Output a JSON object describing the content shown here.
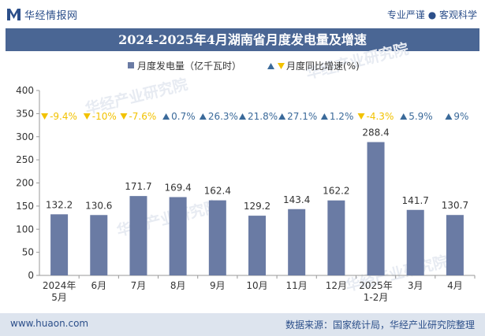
{
  "header": {
    "brand": "华经情报网",
    "slogan": "专业严谨 ● 客观科学",
    "logo_icon": "brand-logo-icon"
  },
  "title": "2024-2025年4月湖南省月度发电量及增速",
  "footer": {
    "website": "www.huaon.com",
    "source": "数据来源：国家统计局，华经产业研究院整理"
  },
  "colors": {
    "bar": "#6a7ba4",
    "title_bg": "#4a6694",
    "up_marker": "#3b6a9a",
    "down_marker": "#f2c200",
    "footer_bg": "#dde4ee"
  },
  "chart_data": {
    "type": "bar",
    "categories": [
      [
        "2024年",
        "5月"
      ],
      [
        "6月"
      ],
      [
        "7月"
      ],
      [
        "8月"
      ],
      [
        "9月"
      ],
      [
        "10月"
      ],
      [
        "11月"
      ],
      [
        "12月"
      ],
      [
        "2025年",
        "1-2月"
      ],
      [
        "3月"
      ],
      [
        "4月"
      ]
    ],
    "series": [
      {
        "name": "月度发电量（亿千瓦时）",
        "values": [
          132.2,
          130.6,
          171.7,
          169.4,
          162.4,
          129.2,
          143.4,
          162.2,
          288.4,
          141.7,
          130.7
        ],
        "value_labels": [
          "132.2",
          "130.6",
          "171.7",
          "169.4",
          "162.4",
          "129.2",
          "143.4",
          "162.2",
          "288.4",
          "141.7",
          "130.7"
        ]
      },
      {
        "name": "月度同比增速(%)",
        "values": [
          -9.4,
          -10,
          -7.6,
          0.7,
          26.3,
          21.8,
          27.1,
          1.2,
          -4.3,
          5.9,
          9
        ],
        "labels": [
          "-9.4%",
          "-10%",
          "-7.6%",
          "0.7%",
          "26.3%",
          "21.8%",
          "27.1%",
          "1.2%",
          "-4.3%",
          "5.9%",
          "9%"
        ]
      }
    ],
    "y_ticks": [
      "0",
      "50",
      "100",
      "150",
      "200",
      "250",
      "300",
      "350",
      "400"
    ],
    "ylim": [
      0,
      400
    ],
    "legend_position": "top",
    "grid": false,
    "watermark": "华经产业研究院"
  }
}
